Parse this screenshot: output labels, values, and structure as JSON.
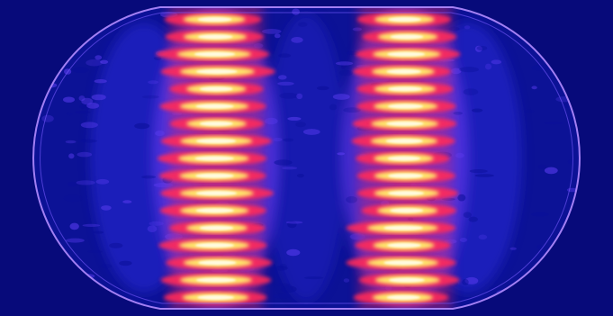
{
  "image": {
    "subject": "stadium-shaped-intensity-pattern",
    "colors": {
      "background": "#070a7a",
      "low": "#0a0f9a",
      "mid": "#5a3cf0",
      "high": "#ff2a5a",
      "peak": "#ffe66a",
      "white": "#fffbe0",
      "outline": "#b48cff"
    },
    "bright_bands": 2,
    "fringes_per_band": 17
  }
}
